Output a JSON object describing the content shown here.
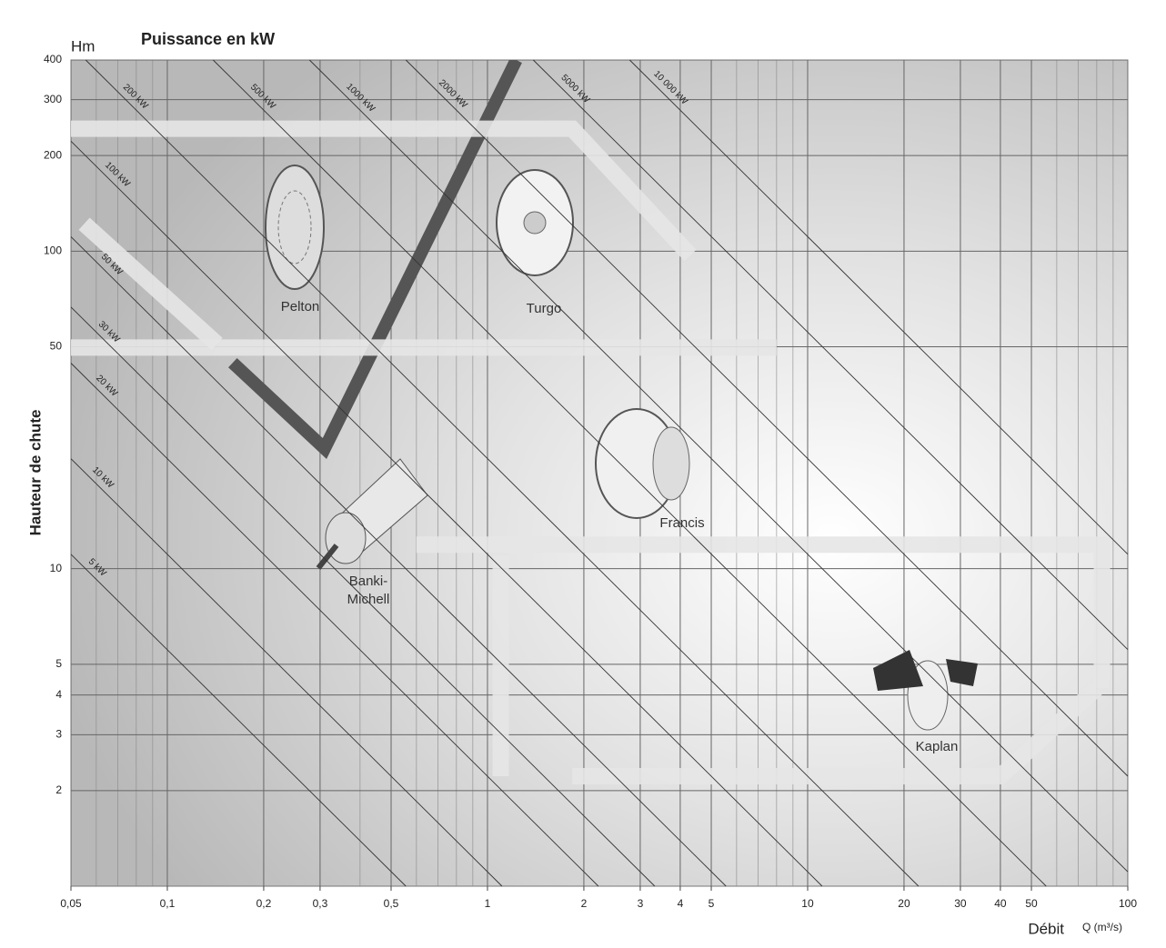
{
  "chart_data": {
    "type": "line",
    "title": "Puissance en kW",
    "y_unit": "Hm",
    "y_label": "Hauteur de chute",
    "x_label": "Débit",
    "x_unit": "Q (m³/s)",
    "log_x": true,
    "log_y": true,
    "xlim": [
      0.05,
      100
    ],
    "ylim": [
      1,
      400
    ],
    "xticks": [
      {
        "value": 0.05,
        "label": "0,05"
      },
      {
        "value": 0.1,
        "label": "0,1"
      },
      {
        "value": 0.2,
        "label": "0,2"
      },
      {
        "value": 0.3,
        "label": "0,3"
      },
      {
        "value": 0.5,
        "label": "0,5"
      },
      1,
      2,
      3,
      4,
      5,
      10,
      20,
      30,
      40,
      50,
      100
    ],
    "yticks": [
      2,
      3,
      4,
      5,
      10,
      50,
      100,
      200,
      300,
      400
    ],
    "xgrid": [
      0.06,
      0.07,
      0.08,
      0.09,
      0.4,
      0.6,
      0.7,
      0.8,
      0.9,
      6,
      7,
      8,
      9,
      60,
      70,
      80,
      90
    ],
    "grid": true,
    "power_lines": [
      {
        "name": "5 kW",
        "x": [
          0.05,
          0.556
        ],
        "values": [
          11.1,
          1
        ]
      },
      {
        "name": "10 kW",
        "x": [
          0.05,
          1.11
        ],
        "values": [
          22.2,
          1
        ]
      },
      {
        "name": "20 kW",
        "x": [
          0.05,
          2.22
        ],
        "values": [
          44.4,
          1
        ]
      },
      {
        "name": "30 kW",
        "x": [
          0.05,
          3.33
        ],
        "values": [
          66.7,
          1
        ]
      },
      {
        "name": "50 kW",
        "x": [
          0.05,
          5.56
        ],
        "values": [
          111,
          1
        ]
      },
      {
        "name": "100 kW",
        "x": [
          0.05,
          11.1
        ],
        "values": [
          222,
          1
        ]
      },
      {
        "name": "200 kW",
        "x": [
          0.0556,
          22.2
        ],
        "values": [
          400,
          1
        ]
      },
      {
        "name": "500 kW",
        "x": [
          0.139,
          55.6
        ],
        "values": [
          400,
          1
        ]
      },
      {
        "name": "1000 kW",
        "x": [
          0.278,
          100
        ],
        "values": [
          400,
          1.11
        ]
      },
      {
        "name": "2000 kW",
        "x": [
          0.556,
          100
        ],
        "values": [
          400,
          2.22
        ]
      },
      {
        "name": "5000 kW",
        "x": [
          1.39,
          100
        ],
        "values": [
          400,
          5.56
        ]
      },
      {
        "name": "10 000 kW",
        "x": [
          2.78,
          100
        ],
        "values": [
          400,
          11.1
        ]
      }
    ],
    "series": [
      {
        "color": "#555555",
        "x": [
          0.16,
          0.31,
          1.23
        ],
        "values": [
          44.5,
          23.9,
          400
        ]
      },
      {
        "color": "#e6e6e6",
        "x": [
          0.05,
          1.84,
          4.3
        ],
        "values": [
          243,
          243,
          97
        ]
      },
      {
        "color": "#e6e6e6",
        "x": [
          0.05,
          8
        ],
        "values": [
          49.7,
          49.7
        ]
      },
      {
        "color": "#e6e6e6",
        "x": [
          0.055,
          0.143
        ],
        "values": [
          122,
          51
        ]
      },
      {
        "color": "#e6e6e6",
        "x": [
          0.6,
          83,
          83
        ],
        "values": [
          11.9,
          11.9,
          4.2
        ]
      },
      {
        "color": "#e6e6e6",
        "x": [
          1.84,
          40,
          80
        ],
        "values": [
          2.22,
          2.22,
          4.2
        ]
      },
      {
        "color": "#e6e6e6",
        "x": [
          1.1,
          1.1
        ],
        "values": [
          11,
          2.22
        ]
      }
    ],
    "turbines": [
      {
        "label": [
          "Pelton"
        ]
      },
      {
        "label": [
          "Turgo"
        ]
      },
      {
        "label": [
          "Francis"
        ]
      },
      {
        "label": [
          "Banki-",
          "Michell"
        ]
      },
      {
        "label": [
          "Kaplan"
        ]
      }
    ]
  }
}
